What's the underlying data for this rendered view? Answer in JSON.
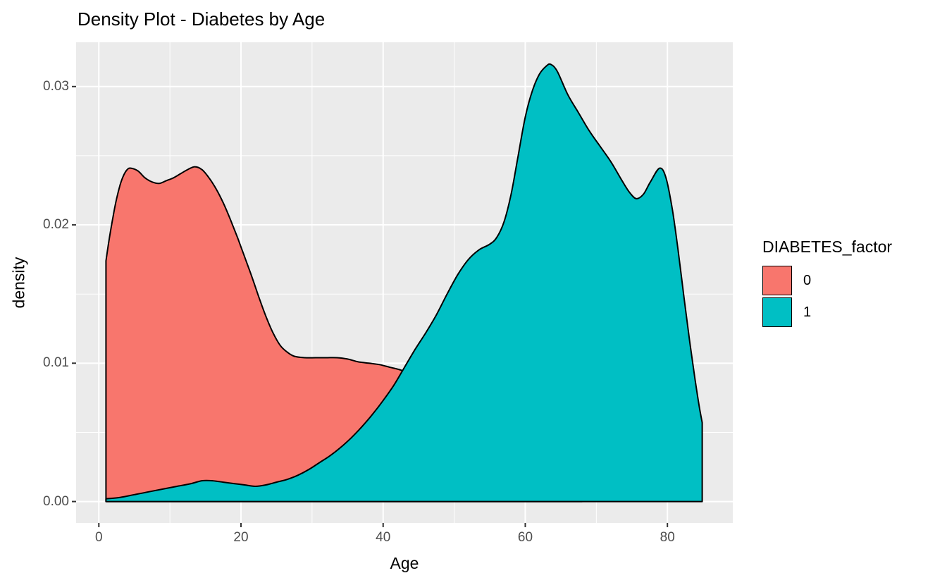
{
  "figure": {
    "background": "#FFFFFF"
  },
  "chart_data": {
    "type": "area",
    "subtype": "density",
    "title": "Density Plot - Diabetes by Age",
    "xlabel": "Age",
    "ylabel": "density",
    "x_range": [
      -3.2,
      89.2
    ],
    "y_range": [
      -0.00155,
      0.0332
    ],
    "x_ticks": {
      "values": [
        0,
        20,
        40,
        60,
        80
      ],
      "labels": [
        "0",
        "20",
        "40",
        "60",
        "80"
      ]
    },
    "y_ticks": {
      "values": [
        0,
        0.01,
        0.02,
        0.03
      ],
      "labels": [
        "0.00",
        "0.01",
        "0.02",
        "0.03"
      ]
    },
    "x_minor": [
      10,
      30,
      50,
      70
    ],
    "y_minor": [
      0.005,
      0.015,
      0.025
    ],
    "grid": true,
    "legend": {
      "title": "DIABETES_factor",
      "position": "right",
      "entries": [
        {
          "label": "0",
          "color": "#F8766D"
        },
        {
          "label": "1",
          "color": "#00BFC4"
        }
      ]
    },
    "colors": {
      "panel_bg": "#EBEBEB",
      "grid": "#FFFFFF",
      "outline": "#000000",
      "tick_mark": "#333333",
      "tick_text": "#4D4D4D",
      "title_text": "#000000"
    },
    "series": [
      {
        "name": "0",
        "fill": "#F8766D",
        "points": [
          [
            1,
            0.0174
          ],
          [
            1.5,
            0.0191
          ],
          [
            2,
            0.0206
          ],
          [
            2.5,
            0.0219
          ],
          [
            3,
            0.0229
          ],
          [
            3.5,
            0.0236
          ],
          [
            4,
            0.024
          ],
          [
            4.5,
            0.0241
          ],
          [
            5.5,
            0.0239
          ],
          [
            6.5,
            0.0234
          ],
          [
            7.5,
            0.0231
          ],
          [
            8.5,
            0.023
          ],
          [
            9.5,
            0.0232
          ],
          [
            10.5,
            0.0234
          ],
          [
            11.5,
            0.0237
          ],
          [
            12.5,
            0.024
          ],
          [
            13.5,
            0.0242
          ],
          [
            14.5,
            0.024
          ],
          [
            15.5,
            0.0234
          ],
          [
            16.5,
            0.0226
          ],
          [
            17.5,
            0.0216
          ],
          [
            18.5,
            0.0204
          ],
          [
            19.5,
            0.0191
          ],
          [
            20.5,
            0.0177
          ],
          [
            21.5,
            0.0163
          ],
          [
            22.5,
            0.0148
          ],
          [
            23.5,
            0.0134
          ],
          [
            24.5,
            0.0122
          ],
          [
            25.5,
            0.0113
          ],
          [
            26.5,
            0.0108
          ],
          [
            27.5,
            0.0105
          ],
          [
            29,
            0.0104
          ],
          [
            30.5,
            0.0104
          ],
          [
            32,
            0.0104
          ],
          [
            33.5,
            0.0104
          ],
          [
            35,
            0.0103
          ],
          [
            36.5,
            0.0101
          ],
          [
            38,
            0.01
          ],
          [
            39.5,
            0.0099
          ],
          [
            41,
            0.0097
          ],
          [
            42.5,
            0.0095
          ],
          [
            44,
            0.0091
          ],
          [
            45.5,
            0.0086
          ],
          [
            47,
            0.0078
          ],
          [
            48.5,
            0.0068
          ],
          [
            50,
            0.0058
          ],
          [
            52,
            0.0044
          ],
          [
            54,
            0.0031
          ],
          [
            56,
            0.0021
          ],
          [
            58,
            0.0013
          ],
          [
            60,
            0.0008
          ],
          [
            62,
            0.0004
          ],
          [
            64,
            0.0002
          ],
          [
            66,
            0.0001
          ],
          [
            68,
            3e-05
          ]
        ]
      },
      {
        "name": "1",
        "fill": "#00BFC4",
        "points": [
          [
            1,
            0.0002
          ],
          [
            3,
            0.0003
          ],
          [
            5,
            0.0005
          ],
          [
            7,
            0.0007
          ],
          [
            9,
            0.0009
          ],
          [
            11,
            0.0011
          ],
          [
            13,
            0.0013
          ],
          [
            14.5,
            0.0015
          ],
          [
            16,
            0.0015
          ],
          [
            17.5,
            0.0014
          ],
          [
            19,
            0.0013
          ],
          [
            20.5,
            0.0012
          ],
          [
            22,
            0.0011
          ],
          [
            23.5,
            0.0012
          ],
          [
            25,
            0.0014
          ],
          [
            26.5,
            0.0016
          ],
          [
            28,
            0.0019
          ],
          [
            29.5,
            0.0023
          ],
          [
            31,
            0.0028
          ],
          [
            32.5,
            0.0033
          ],
          [
            34,
            0.0039
          ],
          [
            35.5,
            0.0046
          ],
          [
            37,
            0.0054
          ],
          [
            38.5,
            0.0063
          ],
          [
            40,
            0.0073
          ],
          [
            41.5,
            0.0084
          ],
          [
            43,
            0.0097
          ],
          [
            44.5,
            0.011
          ],
          [
            46,
            0.0122
          ],
          [
            47.5,
            0.0135
          ],
          [
            49,
            0.015
          ],
          [
            50.5,
            0.0164
          ],
          [
            52,
            0.0175
          ],
          [
            53.5,
            0.0182
          ],
          [
            55,
            0.0186
          ],
          [
            56,
            0.0191
          ],
          [
            57,
            0.0202
          ],
          [
            58,
            0.0222
          ],
          [
            59,
            0.025
          ],
          [
            60,
            0.0278
          ],
          [
            61,
            0.0297
          ],
          [
            62,
            0.0309
          ],
          [
            63,
            0.0315
          ],
          [
            63.6,
            0.0316
          ],
          [
            64.5,
            0.0311
          ],
          [
            66,
            0.0294
          ],
          [
            67.5,
            0.0281
          ],
          [
            69,
            0.0268
          ],
          [
            70.5,
            0.0257
          ],
          [
            72,
            0.0246
          ],
          [
            73.5,
            0.0233
          ],
          [
            74.6,
            0.0224
          ],
          [
            75.6,
            0.0219
          ],
          [
            76.6,
            0.0222
          ],
          [
            77.6,
            0.0231
          ],
          [
            78.9,
            0.0241
          ],
          [
            79.8,
            0.0234
          ],
          [
            80.7,
            0.0211
          ],
          [
            81.5,
            0.0182
          ],
          [
            82.3,
            0.0149
          ],
          [
            83.1,
            0.0117
          ],
          [
            83.9,
            0.0088
          ],
          [
            84.5,
            0.0068
          ],
          [
            84.9,
            0.0057
          ]
        ]
      }
    ]
  }
}
